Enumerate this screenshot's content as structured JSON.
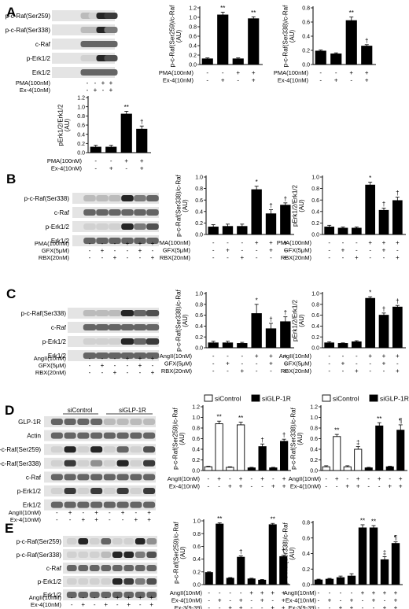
{
  "panels": [
    {
      "letter": "A",
      "blot": {
        "labels": [
          "p-c-Raf(Ser259)",
          "p-c-Raf(Ser338)",
          "c-Raf",
          "p-Erk1/2",
          "Erk1/2"
        ],
        "conditions": [
          {
            "name": "PMA(100nM)",
            "values": [
              "-",
              "-",
              "+",
              "+"
            ]
          },
          {
            "name": "Ex-4(10nM)",
            "values": [
              "-",
              "+",
              "-",
              "+"
            ]
          }
        ]
      }
    },
    {
      "letter": "B",
      "blot": {
        "labels": [
          "p-c-Raf(Ser338)",
          "c-Raf",
          "p-Erk1/2",
          "Erk1/2"
        ],
        "conditions": [
          {
            "name": "PMA(100nM)",
            "values": [
              "-",
              "-",
              "-",
              "+",
              "+",
              "+"
            ]
          },
          {
            "name": "GFX(5μM)",
            "values": [
              "-",
              "+",
              "-",
              "-",
              "+",
              "-"
            ]
          },
          {
            "name": "RBX(20nM)",
            "values": [
              "-",
              "-",
              "+",
              "-",
              "-",
              "+"
            ]
          }
        ]
      }
    },
    {
      "letter": "C",
      "blot": {
        "labels": [
          "p-c-Raf(Ser338)",
          "c-Raf",
          "p-Erk1/2",
          "Erk1/2"
        ],
        "conditions": [
          {
            "name": "AngII(10nM)",
            "values": [
              "-",
              "-",
              "-",
              "+",
              "+",
              "+"
            ]
          },
          {
            "name": "GFX(5μM)",
            "values": [
              "-",
              "+",
              "-",
              "-",
              "+",
              "-"
            ]
          },
          {
            "name": "RBX(20nM)",
            "values": [
              "-",
              "-",
              "+",
              "-",
              "-",
              "+"
            ]
          }
        ]
      }
    },
    {
      "letter": "D",
      "blot": {
        "groups": [
          "siControl",
          "siGLP-1R"
        ],
        "labels": [
          "GLP-1R",
          "Actin",
          "p-c-Raf(Ser259)",
          "p-c-Raf(Ser338)",
          "c-Raf",
          "p-Erk1/2",
          "Erk1/2"
        ],
        "conditions": [
          {
            "name": "AngII(10nM)",
            "values": [
              "-",
              "+",
              "-",
              "+",
              "-",
              "+",
              "-",
              "+"
            ]
          },
          {
            "name": "Ex-4(10nM)",
            "values": [
              "-",
              "-",
              "+",
              "+",
              "-",
              "-",
              "+",
              "+"
            ]
          }
        ]
      }
    },
    {
      "letter": "E",
      "blot": {
        "labels": [
          "p-c-Raf(Ser259)",
          "p-c-Raf(Ser338)",
          "c-Raf",
          "p-Erk1/2",
          "Erk1/2"
        ],
        "conditions": [
          {
            "name": "AngII(10nM)",
            "values": [
              "-",
              "-",
              "-",
              "-",
              "+",
              "+",
              "+",
              "+"
            ]
          },
          {
            "name": "Ex-4(10nM)",
            "values": [
              "-",
              "+",
              "-",
              "+",
              "-",
              "+",
              "-",
              "+"
            ]
          },
          {
            "name": "Ex-3(9-39)\n(10nM)",
            "values": [
              "-",
              "-",
              "+",
              "+",
              "-",
              "-",
              "+",
              "+"
            ]
          }
        ]
      }
    }
  ],
  "chart_data": [
    {
      "type": "bar",
      "panel": "A",
      "ylabel": "p-c-Raf(Ser259)/c-Raf\n(AU)",
      "ylim": [
        0,
        1.2
      ],
      "yticks": [
        "0.0",
        "0.2",
        "0.4",
        "0.6",
        "0.8",
        "1.0",
        "1.2"
      ],
      "values": [
        0.12,
        1.05,
        0.12,
        0.97
      ],
      "errors": [
        0.02,
        0.06,
        0.02,
        0.04
      ],
      "fills": [
        "black",
        "black",
        "black",
        "black"
      ],
      "marks": [
        "",
        "**",
        "",
        "**"
      ],
      "conditions": [
        {
          "name": "PMA(100nM)",
          "values": [
            "-",
            "-",
            "+",
            "+"
          ]
        },
        {
          "name": "Ex-4(10nM)",
          "values": [
            "-",
            "+",
            "-",
            "+"
          ]
        }
      ]
    },
    {
      "type": "bar",
      "panel": "A",
      "ylabel": "p-c-Raf(Ser338)/c-Raf\n(AU)",
      "ylim": [
        0,
        0.8
      ],
      "yticks": [
        "0.0",
        "0.2",
        "0.4",
        "0.6",
        "0.8"
      ],
      "values": [
        0.19,
        0.15,
        0.62,
        0.26
      ],
      "errors": [
        0.015,
        0.015,
        0.05,
        0.02
      ],
      "fills": [
        "black",
        "black",
        "black",
        "black"
      ],
      "marks": [
        "",
        "",
        "**",
        "†"
      ],
      "conditions": [
        {
          "name": "PMA(100nM)",
          "values": [
            "-",
            "-",
            "+",
            "+"
          ]
        },
        {
          "name": "Ex-4(10nM)",
          "values": [
            "-",
            "+",
            "-",
            "+"
          ]
        }
      ]
    },
    {
      "type": "bar",
      "panel": "A",
      "ylabel": "pErk1/2/Erk1/2\n(AU)",
      "ylim": [
        0,
        1.2
      ],
      "yticks": [
        "0.0",
        "0.2",
        "0.4",
        "0.6",
        "0.8",
        "1.0",
        "1.2"
      ],
      "values": [
        0.12,
        0.12,
        0.84,
        0.51
      ],
      "errors": [
        0.04,
        0.04,
        0.06,
        0.07
      ],
      "fills": [
        "black",
        "black",
        "black",
        "black"
      ],
      "marks": [
        "",
        "",
        "**",
        "†"
      ],
      "conditions": [
        {
          "name": "PMA(100nM)",
          "values": [
            "-",
            "-",
            "+",
            "+"
          ]
        },
        {
          "name": "Ex-4(10nM)",
          "values": [
            "-",
            "+",
            "-",
            "+"
          ]
        }
      ]
    },
    {
      "type": "bar",
      "panel": "B",
      "ylabel": "p-c-Raf(Ser338)/c-Raf\n(AU)",
      "ylim": [
        0,
        1.0
      ],
      "yticks": [
        "0.0",
        "0.2",
        "0.4",
        "0.6",
        "0.8",
        "1.0"
      ],
      "values": [
        0.13,
        0.14,
        0.14,
        0.78,
        0.36,
        0.51
      ],
      "errors": [
        0.04,
        0.04,
        0.04,
        0.06,
        0.07,
        0.04
      ],
      "fills": [
        "black",
        "black",
        "black",
        "black",
        "black",
        "black"
      ],
      "marks": [
        "",
        "",
        "",
        "*",
        "†",
        "†"
      ],
      "conditions": [
        {
          "name": "PMA(100nM)",
          "values": [
            "-",
            "-",
            "-",
            "+",
            "+",
            "+"
          ]
        },
        {
          "name": "GFX(5μM)",
          "values": [
            "-",
            "+",
            "-",
            "-",
            "+",
            "-"
          ]
        },
        {
          "name": "RBX(20nM)",
          "values": [
            "-",
            "-",
            "+",
            "-",
            "-",
            "+"
          ]
        }
      ]
    },
    {
      "type": "bar",
      "panel": "B",
      "ylabel": "pErk1/2/Erk1/2\n(AU)",
      "ylim": [
        0,
        1.0
      ],
      "yticks": [
        "0.0",
        "0.2",
        "0.4",
        "0.6",
        "0.8",
        "1.0"
      ],
      "values": [
        0.13,
        0.11,
        0.11,
        0.86,
        0.42,
        0.59
      ],
      "errors": [
        0.03,
        0.02,
        0.02,
        0.05,
        0.04,
        0.06
      ],
      "fills": [
        "black",
        "black",
        "black",
        "black",
        "black",
        "black"
      ],
      "marks": [
        "",
        "",
        "",
        "*",
        "†",
        "†"
      ],
      "conditions": [
        {
          "name": "PMA(100nM)",
          "values": [
            "-",
            "-",
            "-",
            "+",
            "+",
            "+"
          ]
        },
        {
          "name": "GFX(5μM)",
          "values": [
            "-",
            "+",
            "-",
            "-",
            "+",
            "-"
          ]
        },
        {
          "name": "RBX(20nM)",
          "values": [
            "-",
            "-",
            "+",
            "-",
            "-",
            "+"
          ]
        }
      ]
    },
    {
      "type": "bar",
      "panel": "C",
      "ylabel": "p-c-Raf(Ser338)/c-Raf\n(AU)",
      "ylim": [
        0,
        1.0
      ],
      "yticks": [
        "0.0",
        "0.2",
        "0.4",
        "0.6",
        "0.8",
        "1.0"
      ],
      "values": [
        0.09,
        0.09,
        0.08,
        0.63,
        0.35,
        0.48
      ],
      "errors": [
        0.03,
        0.03,
        0.02,
        0.17,
        0.1,
        0.09
      ],
      "fills": [
        "black",
        "black",
        "black",
        "black",
        "black",
        "black"
      ],
      "marks": [
        "",
        "",
        "",
        "*",
        "†",
        "†"
      ],
      "conditions": [
        {
          "name": "AngII(10nM)",
          "values": [
            "-",
            "-",
            "-",
            "+",
            "+",
            "+"
          ]
        },
        {
          "name": "GFX(5μM)",
          "values": [
            "-",
            "+",
            "-",
            "-",
            "+",
            "-"
          ]
        },
        {
          "name": "RBX(20nM)",
          "values": [
            "-",
            "-",
            "+",
            "-",
            "-",
            "+"
          ]
        }
      ]
    },
    {
      "type": "bar",
      "panel": "C",
      "ylabel": "pErk1/2/Erk1/2\n(AU)",
      "ylim": [
        0,
        1.0
      ],
      "yticks": [
        "0.0",
        "0.2",
        "0.4",
        "0.6",
        "0.8",
        "1.0"
      ],
      "values": [
        0.09,
        0.08,
        0.11,
        0.91,
        0.6,
        0.75
      ],
      "errors": [
        0.02,
        0.01,
        0.02,
        0.03,
        0.04,
        0.03
      ],
      "fills": [
        "black",
        "black",
        "black",
        "black",
        "black",
        "black"
      ],
      "marks": [
        "",
        "",
        "",
        "*",
        "†",
        "†"
      ],
      "conditions": [
        {
          "name": "AngII(10nM)",
          "values": [
            "-",
            "-",
            "-",
            "+",
            "+",
            "+"
          ]
        },
        {
          "name": "GFX(5μM)",
          "values": [
            "-",
            "+",
            "-",
            "-",
            "+",
            "-"
          ]
        },
        {
          "name": "RBX(20nM)",
          "values": [
            "-",
            "-",
            "+",
            "-",
            "-",
            "+"
          ]
        }
      ]
    },
    {
      "type": "bar",
      "panel": "D",
      "ylabel": "p-c-Raf(Ser259)/c-Raf\n(AU)",
      "ylim": [
        0,
        1.2
      ],
      "yticks": [
        "0.0",
        "0.2",
        "0.4",
        "0.6",
        "0.8",
        "1.0",
        "1.2"
      ],
      "legend": [
        "siControl",
        "siGLP-1R"
      ],
      "values": [
        0.07,
        0.88,
        0.06,
        0.86,
        0.05,
        0.45,
        0.05,
        0.55
      ],
      "errors": [
        0.01,
        0.05,
        0.01,
        0.05,
        0.01,
        0.05,
        0.01,
        0.04
      ],
      "fills": [
        "white",
        "white",
        "white",
        "white",
        "black",
        "black",
        "black",
        "black"
      ],
      "marks": [
        "",
        "**",
        "",
        "**",
        "",
        "†",
        "",
        "†"
      ],
      "conditions": [
        {
          "name": "AngII(10nM)",
          "values": [
            "-",
            "+",
            "-",
            "+",
            "-",
            "+",
            "-",
            "+"
          ]
        },
        {
          "name": "Ex-4(10nM)",
          "values": [
            "-",
            "-",
            "+",
            "+",
            "-",
            "-",
            "+",
            "+"
          ]
        }
      ]
    },
    {
      "type": "bar",
      "panel": "D",
      "ylabel": "p-c-Raf(Ser338)/c-Raf\n(AU)",
      "ylim": [
        0,
        1.2
      ],
      "yticks": [
        "0.0",
        "0.2",
        "0.4",
        "0.6",
        "0.8",
        "1.0",
        "1.2"
      ],
      "legend": [
        "siControl",
        "siGLP-1R"
      ],
      "values": [
        0.07,
        0.64,
        0.07,
        0.4,
        0.05,
        0.84,
        0.07,
        0.76
      ],
      "errors": [
        0.02,
        0.04,
        0.02,
        0.05,
        0.01,
        0.06,
        0.01,
        0.1
      ],
      "fills": [
        "white",
        "white",
        "white",
        "white",
        "black",
        "black",
        "black",
        "black"
      ],
      "marks": [
        "",
        "**",
        "",
        "‡",
        "",
        "**",
        "",
        "¶"
      ],
      "conditions": [
        {
          "name": "AngII(10nM)",
          "values": [
            "-",
            "+",
            "-",
            "+",
            "-",
            "+",
            "-",
            "+"
          ]
        },
        {
          "name": "Ex-4(10nM)",
          "values": [
            "-",
            "-",
            "+",
            "+",
            "-",
            "-",
            "+",
            "+"
          ]
        }
      ]
    },
    {
      "type": "bar",
      "panel": "E",
      "ylabel": "p-c-Raf(Ser259)/c-Raf\n(AU)",
      "ylim": [
        0,
        1.0
      ],
      "yticks": [
        "0.0",
        "0.2",
        "0.4",
        "0.6",
        "0.8",
        "1.0"
      ],
      "values": [
        0.19,
        0.95,
        0.1,
        0.43,
        0.09,
        0.07,
        0.94,
        0.44
      ],
      "errors": [
        0.01,
        0.02,
        0.01,
        0.02,
        0.01,
        0.01,
        0.02,
        0.02
      ],
      "fills": [
        "black",
        "black",
        "black",
        "black",
        "black",
        "black",
        "black",
        "black"
      ],
      "marks": [
        "",
        "**",
        "",
        "†",
        "",
        "",
        "**",
        "†"
      ],
      "conditions": [
        {
          "name": "AngII(10nM)",
          "values": [
            "-",
            "-",
            "-",
            "-",
            "+",
            "+",
            "+",
            "+"
          ]
        },
        {
          "name": "Ex-4(10nM)",
          "values": [
            "-",
            "+",
            "-",
            "+",
            "-",
            "+",
            "-",
            "+"
          ]
        },
        {
          "name": "Ex-3(9-39)\n(10nM)",
          "values": [
            "-",
            "-",
            "+",
            "+",
            "-",
            "-",
            "+",
            "+"
          ]
        }
      ]
    },
    {
      "type": "bar",
      "panel": "E",
      "ylabel": "p-c-Raf(Ser338)/c-Raf\n(AU)",
      "ylim": [
        0,
        0.8
      ],
      "yticks": [
        "0.0",
        "0.2",
        "0.4",
        "0.6",
        "0.8"
      ],
      "values": [
        0.06,
        0.07,
        0.09,
        0.11,
        0.73,
        0.73,
        0.32,
        0.53
      ],
      "errors": [
        0.01,
        0.01,
        0.02,
        0.03,
        0.04,
        0.03,
        0.04,
        0.02
      ],
      "fills": [
        "black",
        "black",
        "black",
        "black",
        "black",
        "black",
        "black",
        "black"
      ],
      "marks": [
        "",
        "",
        "",
        "",
        "**",
        "**",
        "‡",
        "¶"
      ],
      "conditions": [
        {
          "name": "AngII(10nM)",
          "values": [
            "-",
            "-",
            "-",
            "-",
            "+",
            "+",
            "+",
            "+"
          ]
        },
        {
          "name": "Ex-4(10nM)",
          "values": [
            "-",
            "+",
            "-",
            "+",
            "-",
            "+",
            "-",
            "+"
          ]
        },
        {
          "name": "Ex-3(9-39)\n(10nM)",
          "values": [
            "-",
            "-",
            "+",
            "+",
            "-",
            "-",
            "+",
            "+"
          ]
        }
      ]
    }
  ]
}
